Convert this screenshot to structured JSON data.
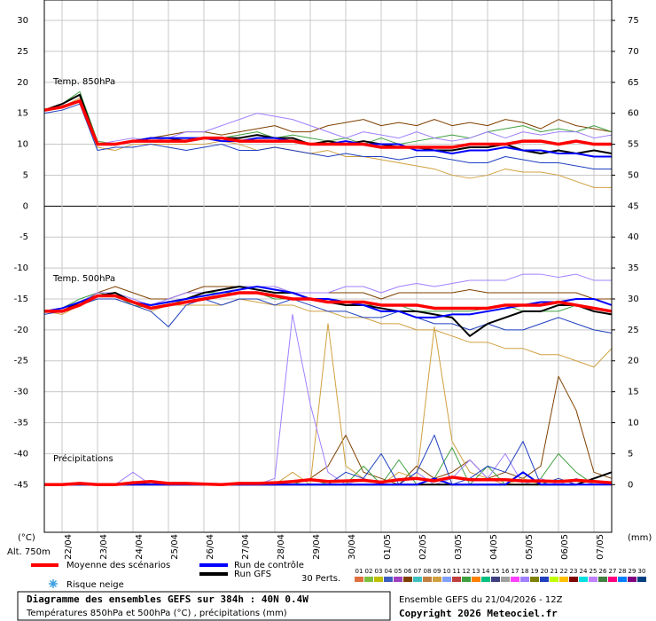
{
  "chart_data": {
    "type": "line",
    "title": "Diagramme des ensembles GEFS sur 384h : 40N 0.4W",
    "subtitle": "Températures 850hPa et 500hPa (°C) , précipitations (mm)",
    "run_label": "Ensemble GEFS du 21/04/2026 - 12Z",
    "copyright": "Copyright 2026 Meteociel.fr",
    "y_label": "(°C)",
    "y2_label": "(mm)",
    "altitude": "Alt. 750m",
    "panel_labels": [
      "Temp. 850hPa",
      "Temp. 500hPa",
      "Précipitations"
    ],
    "snow_label": "Risque neige",
    "perturbations_label": "30 Perts.",
    "grid": true,
    "x": [
      0,
      12,
      24,
      36,
      48,
      60,
      72,
      84,
      96,
      108,
      120,
      132,
      144,
      156,
      168,
      180,
      192,
      204,
      216,
      228,
      240,
      252,
      264,
      276,
      288,
      300,
      312,
      324,
      336,
      348,
      360,
      372,
      384
    ],
    "xlim": [
      0,
      384
    ],
    "xticks": [
      {
        "value": 12,
        "label": "22/04"
      },
      {
        "value": 36,
        "label": "23/04"
      },
      {
        "value": 60,
        "label": "24/04"
      },
      {
        "value": 84,
        "label": "25/04"
      },
      {
        "value": 108,
        "label": "26/04"
      },
      {
        "value": 132,
        "label": "27/04"
      },
      {
        "value": 156,
        "label": "28/04"
      },
      {
        "value": 180,
        "label": "29/04"
      },
      {
        "value": 204,
        "label": "30/04"
      },
      {
        "value": 228,
        "label": "01/05"
      },
      {
        "value": 252,
        "label": "02/05"
      },
      {
        "value": 276,
        "label": "03/05"
      },
      {
        "value": 300,
        "label": "04/05"
      },
      {
        "value": 324,
        "label": "05/05"
      },
      {
        "value": 348,
        "label": "06/05"
      },
      {
        "value": 372,
        "label": "07/05"
      }
    ],
    "ylim": [
      -52.7,
      33.3
    ],
    "yticks": [
      30,
      25,
      20,
      15,
      10,
      5,
      0,
      -5,
      -10,
      -15,
      -20,
      -25,
      -30,
      -35,
      -40,
      -45
    ],
    "y2lim": [
      -7.7,
      78.3
    ],
    "y2ticks": [
      75,
      70,
      65,
      60,
      55,
      50,
      45,
      40,
      35,
      30,
      25,
      20,
      15,
      10,
      5,
      0
    ],
    "series": [
      {
        "name": "Run GFS",
        "color": "#000000",
        "t850": [
          15.5,
          16.5,
          18,
          10,
          10,
          10.5,
          11,
          11,
          10.5,
          11,
          11,
          11,
          11.5,
          11,
          11,
          10,
          10.5,
          10,
          10.5,
          10,
          9.5,
          9.5,
          9,
          9,
          9.5,
          9.5,
          10,
          9,
          8.5,
          9,
          8.5,
          9,
          8.5
        ],
        "t500": [
          -17,
          -17,
          -15.5,
          -14.5,
          -14,
          -15.5,
          -16,
          -15.5,
          -15,
          -14,
          -13.5,
          -13,
          -13.5,
          -14,
          -14,
          -15,
          -15.5,
          -16,
          -16,
          -16.5,
          -17,
          -17,
          -17.5,
          -18,
          -21,
          -19,
          -18,
          -17,
          -17,
          -16,
          -16,
          -17,
          -17.5
        ],
        "precip": [
          0,
          0,
          0,
          0,
          0,
          0,
          0,
          0,
          0,
          0,
          0,
          0,
          0,
          0,
          0,
          0,
          0,
          0,
          0,
          0,
          0,
          0,
          0,
          0,
          0,
          0,
          0,
          0,
          0,
          0,
          0,
          1,
          2
        ]
      },
      {
        "name": "Run de contrôle",
        "color": "#0000ff",
        "t850": [
          15.5,
          16,
          17,
          10,
          10,
          10.5,
          11,
          11,
          11,
          11,
          10.5,
          10.5,
          11,
          11,
          10.5,
          10,
          10,
          10.5,
          10,
          10,
          10,
          9,
          9,
          8.5,
          9,
          9,
          9.5,
          9,
          9,
          8.5,
          8.5,
          8,
          8
        ],
        "t500": [
          -17,
          -16.5,
          -15.5,
          -14.5,
          -14.5,
          -15.5,
          -16,
          -15.5,
          -15,
          -14.5,
          -14,
          -13.5,
          -13,
          -13.5,
          -14,
          -15,
          -15,
          -15.5,
          -16,
          -17,
          -17,
          -18,
          -18,
          -17.5,
          -17.5,
          -17,
          -16.5,
          -16,
          -15.5,
          -15.5,
          -15,
          -15,
          -16
        ],
        "precip": [
          0,
          0,
          0,
          0,
          0,
          0,
          0,
          0,
          0,
          0,
          0,
          0,
          0,
          0,
          0,
          0,
          0,
          0,
          0,
          0,
          0,
          0,
          1,
          0,
          0,
          0,
          0,
          2,
          0,
          0,
          0,
          0,
          0
        ]
      },
      {
        "name": "Moyenne des scénarios",
        "color": "#ff0000",
        "t850": [
          15.5,
          16,
          17,
          10,
          10,
          10.5,
          10.5,
          10.5,
          10.5,
          11,
          11,
          10.5,
          10.5,
          10.5,
          10.5,
          10,
          10,
          10,
          10,
          9.5,
          9.5,
          9.5,
          9.5,
          9.5,
          10,
          10,
          10,
          10.5,
          10.5,
          10,
          10.5,
          10,
          10
        ],
        "t500": [
          -17,
          -17,
          -16,
          -14.5,
          -14.5,
          -15.5,
          -16.5,
          -16,
          -15.5,
          -15,
          -14.5,
          -14,
          -14,
          -14.5,
          -15,
          -15,
          -15.5,
          -15.5,
          -15.5,
          -16,
          -16,
          -16,
          -16.5,
          -16.5,
          -16.5,
          -16.5,
          -16,
          -16,
          -16,
          -15.5,
          -16,
          -16.5,
          -17
        ],
        "precip": [
          0,
          0,
          0.2,
          0,
          0,
          0.3,
          0.5,
          0.2,
          0.2,
          0.1,
          0,
          0.2,
          0.2,
          0.3,
          0.5,
          0.8,
          0.5,
          0.6,
          0.7,
          0.4,
          0.8,
          1,
          0.6,
          1.2,
          0.8,
          0.8,
          0.8,
          0.6,
          0.6,
          0.5,
          0.7,
          0.5,
          0.3
        ]
      }
    ],
    "perturbations": [
      {
        "name": "01",
        "color": "#e07040"
      },
      {
        "name": "02",
        "color": "#80c040"
      },
      {
        "name": "03",
        "color": "#c0c000"
      },
      {
        "name": "04",
        "color": "#4060c0"
      },
      {
        "name": "05",
        "color": "#a040c0"
      },
      {
        "name": "06",
        "color": "#804000",
        "t850": [
          15.5,
          16.5,
          18,
          10,
          10,
          10.5,
          11,
          11.5,
          12,
          12,
          11.5,
          12,
          12.5,
          13,
          12,
          12,
          13,
          13.5,
          14,
          13,
          13.5,
          13,
          14,
          13,
          13.5,
          13,
          14,
          13.5,
          12.5,
          14,
          13,
          12.5,
          12
        ],
        "t500": [
          -17,
          -17,
          -16,
          -14,
          -13,
          -14,
          -15,
          -15,
          -14,
          -13,
          -13,
          -13,
          -13,
          -13,
          -14,
          -14,
          -14,
          -14,
          -14,
          -15,
          -14,
          -14,
          -14,
          -14,
          -13.5,
          -14,
          -14,
          -14,
          -14,
          -14,
          -14,
          -15,
          -15
        ],
        "precip": [
          0,
          0,
          0,
          0,
          0,
          0.5,
          0,
          0,
          0,
          0,
          0,
          0,
          0,
          0,
          0,
          1,
          3,
          8,
          2,
          1,
          0,
          3,
          1,
          2,
          4,
          1,
          2,
          1,
          3,
          17.5,
          12,
          2,
          1
        ]
      },
      {
        "name": "07",
        "color": "#40c0c0"
      },
      {
        "name": "08",
        "color": "#c08040"
      },
      {
        "name": "09",
        "color": "#d0a040",
        "t850": [
          15.5,
          16,
          17.5,
          9.5,
          9,
          10,
          10,
          10,
          10,
          10,
          10.5,
          10,
          9,
          9.5,
          9,
          8.5,
          9,
          8,
          8,
          7.5,
          7,
          6.5,
          6,
          5,
          4.5,
          5,
          6,
          5.5,
          5.5,
          5,
          4,
          3,
          3
        ],
        "t500": [
          -17,
          -17.5,
          -16,
          -15,
          -15,
          -16,
          -17,
          -16,
          -16,
          -16,
          -16,
          -15,
          -15.5,
          -16,
          -16,
          -17,
          -17,
          -18,
          -18,
          -19,
          -19,
          -20,
          -20,
          -21,
          -22,
          -22,
          -23,
          -23,
          -24,
          -24,
          -25,
          -26,
          -23
        ],
        "precip": [
          0,
          0,
          0,
          0,
          0,
          0,
          0,
          0,
          0,
          0,
          0,
          0,
          0,
          0,
          2,
          0,
          26,
          3,
          1,
          0,
          2,
          1,
          25.5,
          7,
          2,
          1,
          0,
          1,
          0,
          1,
          0,
          0,
          0
        ]
      },
      {
        "name": "10",
        "color": "#80a0ff"
      },
      {
        "name": "11",
        "color": "#c04040"
      },
      {
        "name": "12",
        "color": "#40a040",
        "t850": [
          15.5,
          16.5,
          18.5,
          10.5,
          10,
          10.5,
          11,
          11,
          10.5,
          11,
          11,
          11.5,
          12,
          11,
          11.5,
          11,
          10.5,
          11,
          10,
          11,
          10,
          10.5,
          11,
          11.5,
          11,
          12,
          12.5,
          13,
          12,
          12.5,
          12,
          13,
          12
        ],
        "t500": [
          -17,
          -16.5,
          -15,
          -14,
          -14.5,
          -16,
          -16.5,
          -16,
          -15,
          -14,
          -14,
          -14,
          -14,
          -15,
          -15,
          -15,
          -15,
          -16,
          -16,
          -16,
          -16,
          -17,
          -17,
          -17,
          -17,
          -16.5,
          -16,
          -17,
          -17,
          -17,
          -16,
          -16.5,
          -17
        ],
        "precip": [
          0,
          0,
          0,
          0,
          0,
          0,
          0,
          0,
          0,
          0,
          0,
          0,
          0,
          0,
          0,
          1,
          0,
          0,
          3,
          0,
          4,
          0,
          1,
          6,
          0,
          3,
          0,
          0,
          1,
          5,
          2,
          0,
          0
        ]
      },
      {
        "name": "13",
        "color": "#ff8000"
      },
      {
        "name": "14",
        "color": "#00c080"
      },
      {
        "name": "15",
        "color": "#404080"
      },
      {
        "name": "16",
        "color": "#a0a0a0"
      },
      {
        "name": "17",
        "color": "#ff40ff"
      },
      {
        "name": "18",
        "color": "#a080ff",
        "t850": [
          15.5,
          16,
          17,
          10,
          10.5,
          11,
          10.5,
          11,
          12,
          12,
          13,
          14,
          15,
          14.5,
          14,
          13,
          12,
          11,
          12,
          11.5,
          11,
          12,
          11,
          10.5,
          11,
          12,
          11,
          12,
          11.5,
          12,
          12,
          11,
          11.5
        ],
        "t500": [
          -17,
          -17,
          -15.5,
          -14,
          -14,
          -15,
          -16,
          -15,
          -14,
          -14,
          -13.5,
          -13,
          -13,
          -13,
          -14,
          -14,
          -14,
          -13,
          -13,
          -14,
          -13,
          -12.5,
          -13,
          -12.5,
          -12,
          -12,
          -12,
          -11,
          -11,
          -11.5,
          -11,
          -12,
          -12
        ],
        "precip": [
          0,
          0,
          0,
          0,
          0,
          2,
          0,
          0,
          0,
          0,
          0,
          0,
          0,
          1,
          27.5,
          13,
          2,
          0,
          1,
          0,
          0,
          2,
          0,
          1,
          4,
          1,
          5,
          0,
          1,
          0,
          1,
          0,
          0
        ]
      },
      {
        "name": "19",
        "color": "#808000"
      },
      {
        "name": "20",
        "color": "#2040c0",
        "t850": [
          15,
          15.5,
          16.5,
          9,
          9.5,
          9.5,
          10,
          9.5,
          9,
          9.5,
          10,
          9,
          9,
          9.5,
          9,
          8.5,
          8,
          8.5,
          8,
          8,
          7.5,
          8,
          8,
          7.5,
          7,
          7,
          8,
          7.5,
          7,
          7,
          6.5,
          6,
          6
        ],
        "t500": [
          -17.5,
          -17,
          -16,
          -15,
          -15,
          -16,
          -17,
          -19.5,
          -16,
          -15,
          -16,
          -15,
          -15,
          -16,
          -15,
          -16,
          -17,
          -17,
          -18,
          -18,
          -17,
          -18,
          -19,
          -19,
          -20,
          -19,
          -20,
          -20,
          -19,
          -18,
          -19,
          -20,
          -20.5
        ],
        "precip": [
          0,
          0,
          0,
          0,
          0,
          0,
          0,
          0,
          0,
          0,
          0,
          0,
          0,
          0,
          0,
          0,
          0,
          2,
          1,
          5,
          0,
          2,
          8,
          0,
          1,
          3,
          2,
          7,
          0,
          1,
          0,
          0,
          0
        ]
      },
      {
        "name": "21",
        "color": "#c0ff00"
      },
      {
        "name": "22",
        "color": "#ffc000"
      },
      {
        "name": "23",
        "color": "#800000"
      },
      {
        "name": "24",
        "color": "#00e0e0"
      },
      {
        "name": "25",
        "color": "#c080ff"
      },
      {
        "name": "26",
        "color": "#408040"
      },
      {
        "name": "27",
        "color": "#ff0080"
      },
      {
        "name": "28",
        "color": "#0080ff"
      },
      {
        "name": "29",
        "color": "#800080"
      },
      {
        "name": "30",
        "color": "#004080"
      }
    ]
  }
}
